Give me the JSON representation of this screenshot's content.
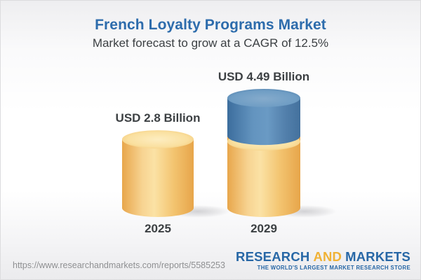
{
  "header": {
    "title": "French Loyalty Programs Market",
    "subtitle": "Market forecast to grow at a CAGR of 12.5%"
  },
  "chart_data": {
    "type": "bar",
    "variant": "3d-cylinder",
    "title": "French Loyalty Programs Market",
    "subtitle": "Market forecast to grow at a CAGR of 12.5%",
    "cagr_percent": 12.5,
    "unit": "USD Billion",
    "categories": [
      "2025",
      "2029"
    ],
    "values": [
      2.8,
      4.49
    ],
    "value_labels": [
      "USD 2.8 Billion",
      "USD 4.49 Billion"
    ],
    "series_note": "2029 bar shows 2025 base in gold with growth portion stacked in blue",
    "colors": {
      "base_segment": "#f3c470",
      "growth_segment": "#6697c2"
    },
    "grid": false,
    "legend": false
  },
  "footer": {
    "url": "https://www.researchandmarkets.com/reports/5585253",
    "logo": {
      "part1": "RESEARCH",
      "part2": "AND",
      "part3": "MARKETS",
      "tagline": "THE WORLD'S LARGEST MARKET RESEARCH STORE"
    }
  },
  "colors": {
    "title_blue": "#2d6cac",
    "text_dark": "#3c4043",
    "url_gray": "#8f9092",
    "logo_blue": "#2767a6",
    "logo_gold": "#f0b236",
    "bar_gold": "#f3c470",
    "bar_blue": "#6697c2"
  }
}
